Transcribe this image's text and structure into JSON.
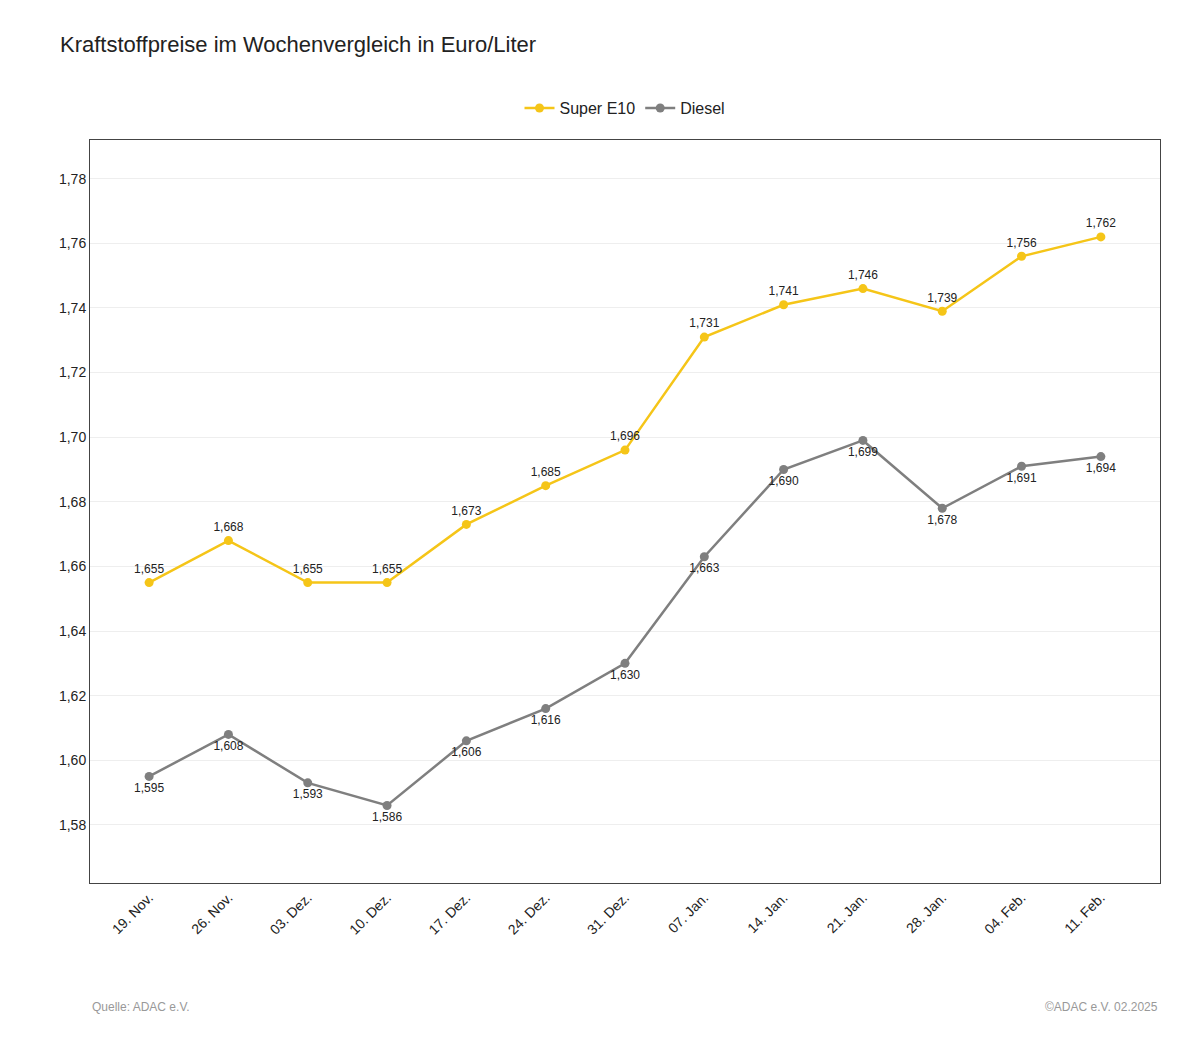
{
  "chart_data": {
    "type": "line",
    "title": "Kraftstoffpreise im Wochenvergleich in Euro/Liter",
    "categories": [
      "19. Nov.",
      "26. Nov.",
      "03. Dez.",
      "10. Dez.",
      "17. Dez.",
      "24. Dez.",
      "31. Dez.",
      "07. Jan.",
      "14. Jan.",
      "21. Jan.",
      "28. Jan.",
      "04. Feb.",
      "11. Feb."
    ],
    "series": [
      {
        "name": "Super E10",
        "color": "#F5C518",
        "values": [
          1.655,
          1.668,
          1.655,
          1.655,
          1.673,
          1.685,
          1.696,
          1.731,
          1.741,
          1.746,
          1.739,
          1.756,
          1.762
        ],
        "value_labels": [
          "1,655",
          "1,668",
          "1,655",
          "1,655",
          "1,673",
          "1,685",
          "1,696",
          "1,731",
          "1,741",
          "1,746",
          "1,739",
          "1,756",
          "1,762"
        ]
      },
      {
        "name": "Diesel",
        "color": "#7F7F7F",
        "values": [
          1.595,
          1.608,
          1.593,
          1.586,
          1.606,
          1.616,
          1.63,
          1.663,
          1.69,
          1.699,
          1.678,
          1.691,
          1.694
        ],
        "value_labels": [
          "1,595",
          "1,608",
          "1,593",
          "1,586",
          "1,606",
          "1,616",
          "1,630",
          "1,663",
          "1,690",
          "1,699",
          "1,678",
          "1,691",
          "1,694"
        ]
      }
    ],
    "ylim": [
      1.562,
      1.792
    ],
    "yticks": [
      {
        "value": 1.58,
        "label": "1,58"
      },
      {
        "value": 1.6,
        "label": "1,60"
      },
      {
        "value": 1.62,
        "label": "1,62"
      },
      {
        "value": 1.64,
        "label": "1,64"
      },
      {
        "value": 1.66,
        "label": "1,66"
      },
      {
        "value": 1.68,
        "label": "1,68"
      },
      {
        "value": 1.7,
        "label": "1,70"
      },
      {
        "value": 1.72,
        "label": "1,72"
      },
      {
        "value": 1.74,
        "label": "1,74"
      },
      {
        "value": 1.76,
        "label": "1,76"
      },
      {
        "value": 1.78,
        "label": "1,78"
      }
    ],
    "grid": true,
    "legend": "upper center",
    "data_labels": true,
    "marker": "circle",
    "annotations": [
      "Quelle: ADAC e.V.",
      "©ADAC e.V. 02.2025"
    ]
  }
}
